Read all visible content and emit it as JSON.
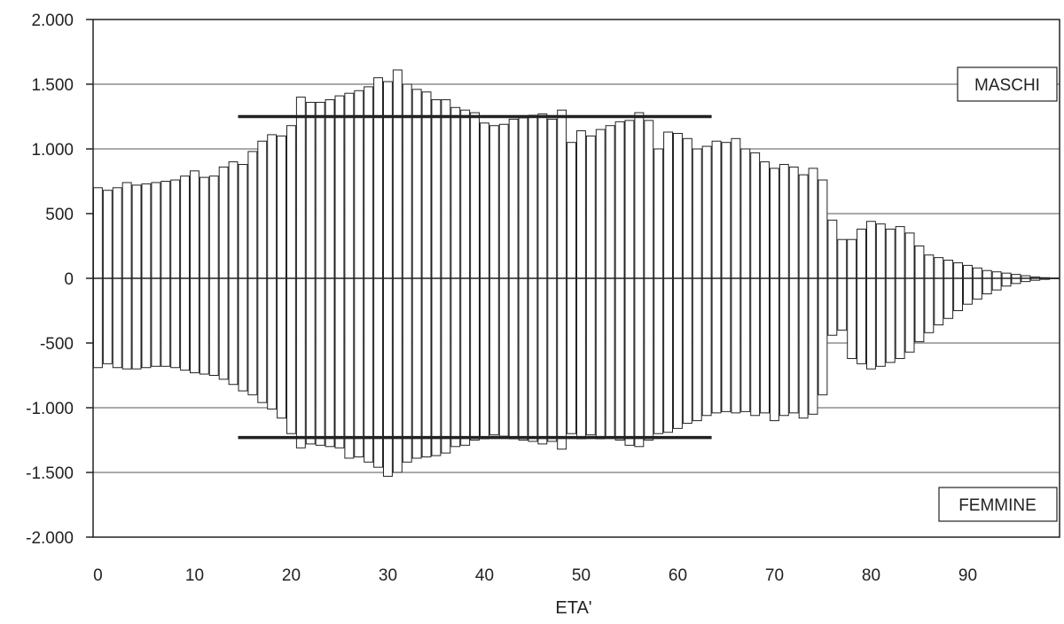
{
  "chart_data": {
    "type": "bar",
    "xlabel": "ETA'",
    "ylabel": "",
    "ylim": [
      -2000,
      2000
    ],
    "yticks": [
      -2000,
      -1500,
      -1000,
      -500,
      0,
      500,
      1000,
      1500,
      2000
    ],
    "ytick_labels": [
      "-2.000",
      "-1.500",
      "-1.000",
      "-500",
      "0",
      "500",
      "1.000",
      "1.500",
      "2.000"
    ],
    "xticks": [
      0,
      10,
      20,
      30,
      40,
      50,
      60,
      70,
      80,
      90
    ],
    "xtick_labels": [
      "0",
      "10",
      "20",
      "30",
      "40",
      "50",
      "60",
      "70",
      "80",
      "90"
    ],
    "grid": true,
    "categories": [
      0,
      1,
      2,
      3,
      4,
      5,
      6,
      7,
      8,
      9,
      10,
      11,
      12,
      13,
      14,
      15,
      16,
      17,
      18,
      19,
      20,
      21,
      22,
      23,
      24,
      25,
      26,
      27,
      28,
      29,
      30,
      31,
      32,
      33,
      34,
      35,
      36,
      37,
      38,
      39,
      40,
      41,
      42,
      43,
      44,
      45,
      46,
      47,
      48,
      49,
      50,
      51,
      52,
      53,
      54,
      55,
      56,
      57,
      58,
      59,
      60,
      61,
      62,
      63,
      64,
      65,
      66,
      67,
      68,
      69,
      70,
      71,
      72,
      73,
      74,
      75,
      76,
      77,
      78,
      79,
      80,
      81,
      82,
      83,
      84,
      85,
      86,
      87,
      88,
      89,
      90,
      91,
      92,
      93,
      94,
      95,
      96,
      97,
      98,
      99
    ],
    "series": [
      {
        "name": "MASCHI",
        "values": [
          700,
          680,
          700,
          740,
          720,
          730,
          740,
          750,
          760,
          790,
          830,
          780,
          790,
          860,
          900,
          880,
          980,
          1060,
          1110,
          1100,
          1180,
          1400,
          1360,
          1360,
          1380,
          1410,
          1430,
          1450,
          1480,
          1550,
          1520,
          1610,
          1500,
          1460,
          1440,
          1380,
          1380,
          1320,
          1300,
          1280,
          1200,
          1180,
          1190,
          1230,
          1240,
          1260,
          1270,
          1230,
          1300,
          1050,
          1140,
          1100,
          1150,
          1180,
          1210,
          1220,
          1280,
          1220,
          1000,
          1130,
          1120,
          1080,
          1000,
          1020,
          1060,
          1050,
          1080,
          1000,
          970,
          900,
          850,
          880,
          860,
          800,
          850,
          760,
          450,
          300,
          300,
          380,
          440,
          420,
          380,
          400,
          350,
          250,
          180,
          160,
          140,
          120,
          100,
          80,
          60,
          50,
          40,
          30,
          20,
          10,
          5,
          2
        ]
      },
      {
        "name": "FEMMINE",
        "values": [
          -690,
          -660,
          -690,
          -700,
          -700,
          -690,
          -680,
          -680,
          -690,
          -710,
          -730,
          -740,
          -750,
          -780,
          -820,
          -870,
          -900,
          -960,
          -1010,
          -1080,
          -1200,
          -1310,
          -1280,
          -1290,
          -1300,
          -1310,
          -1390,
          -1380,
          -1420,
          -1460,
          -1530,
          -1500,
          -1420,
          -1390,
          -1380,
          -1370,
          -1350,
          -1300,
          -1290,
          -1250,
          -1240,
          -1210,
          -1220,
          -1240,
          -1250,
          -1260,
          -1280,
          -1260,
          -1320,
          -1200,
          -1240,
          -1210,
          -1240,
          -1230,
          -1250,
          -1290,
          -1300,
          -1250,
          -1200,
          -1190,
          -1160,
          -1120,
          -1100,
          -1060,
          -1040,
          -1030,
          -1040,
          -1030,
          -1060,
          -1040,
          -1100,
          -1060,
          -1040,
          -1080,
          -1050,
          -900,
          -440,
          -400,
          -620,
          -660,
          -700,
          -680,
          -650,
          -620,
          -570,
          -490,
          -420,
          -360,
          -310,
          -250,
          -200,
          -160,
          -120,
          -90,
          -60,
          -40,
          -25,
          -15,
          -8,
          -3
        ]
      }
    ],
    "reference_lines": [
      {
        "from": 15,
        "to": 63,
        "value": 1250
      },
      {
        "from": 15,
        "to": 63,
        "value": -1230
      }
    ],
    "legend": {
      "top_label": "MASCHI",
      "bottom_label": "FEMMINE",
      "placement": "right"
    }
  }
}
